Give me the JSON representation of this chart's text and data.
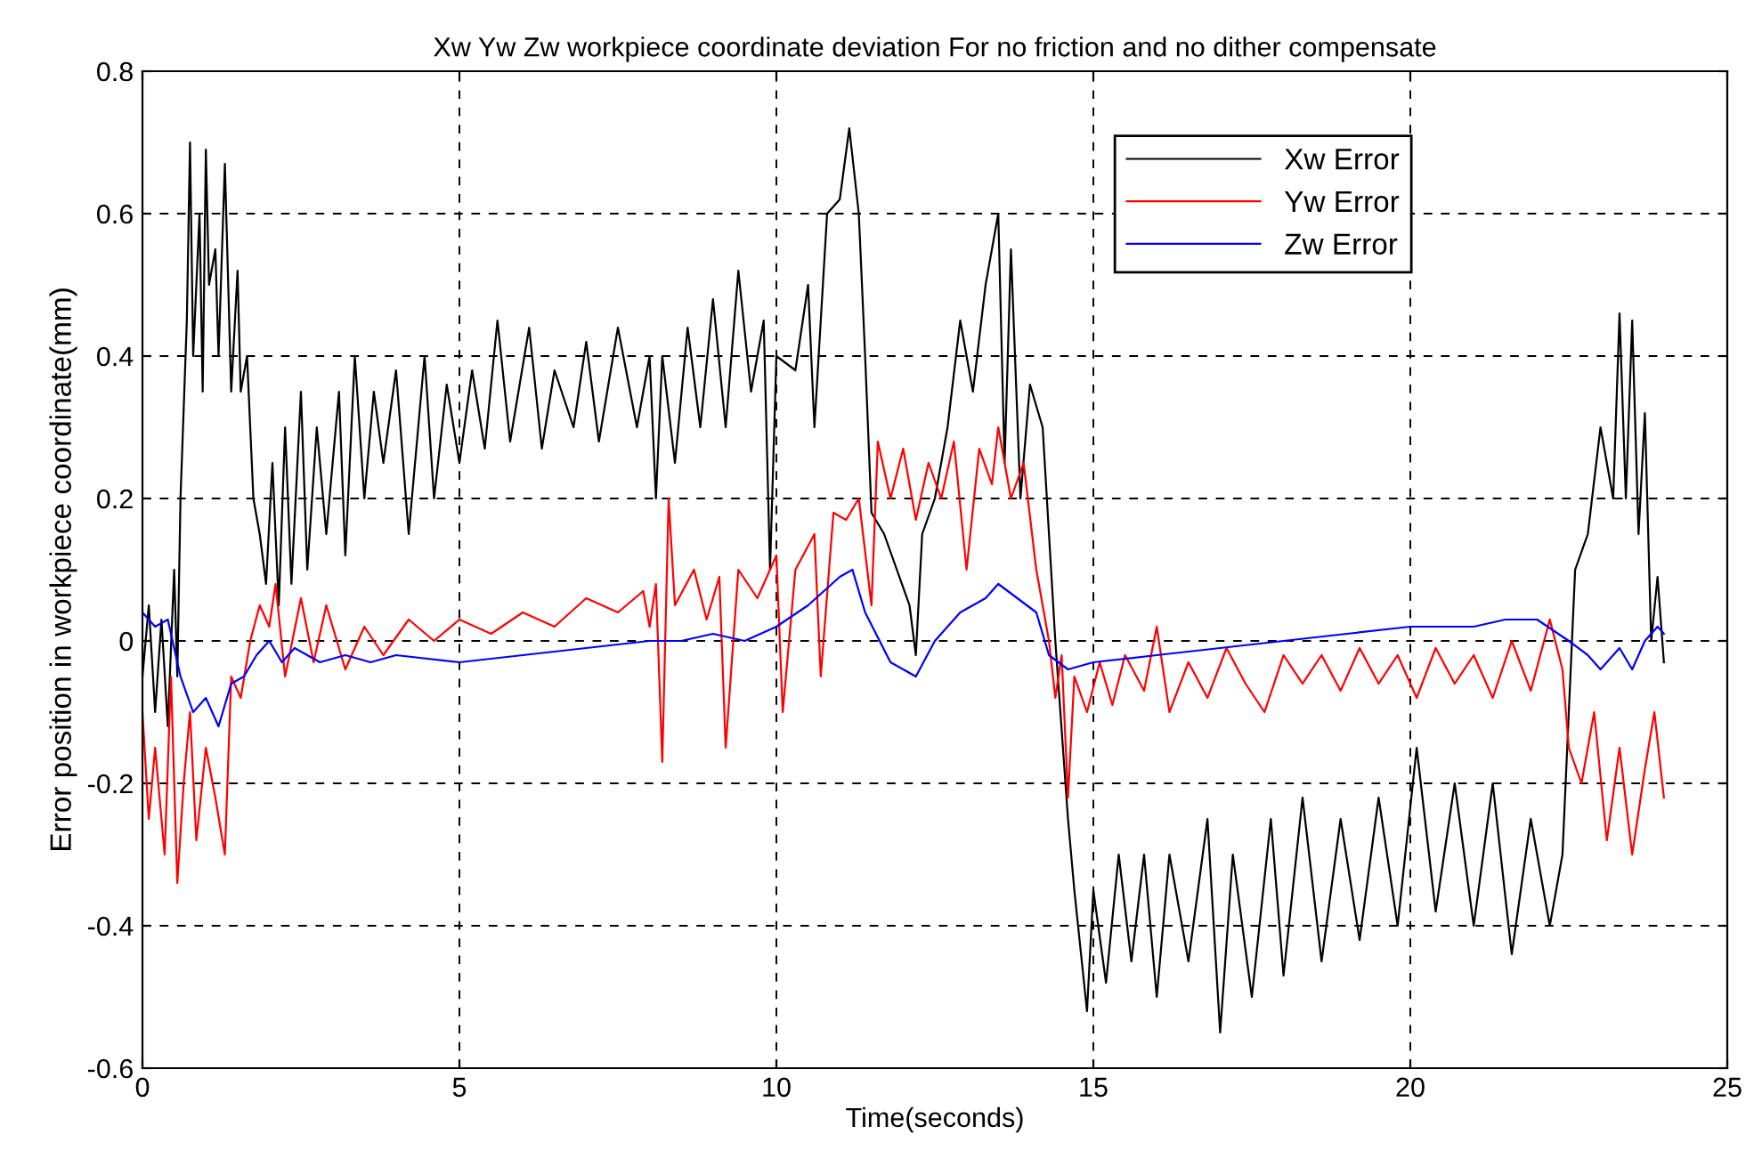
{
  "chart_data": {
    "type": "line",
    "title": "Xw Yw Zw workpiece coordinate deviation For no friction and no dither compensate",
    "xlabel": "Time(seconds)",
    "ylabel": "Error position in workpiece coordinate(mm)",
    "xlim": [
      0,
      25
    ],
    "xticks": [
      0,
      5,
      10,
      15,
      20,
      25
    ],
    "ylim": [
      -0.6,
      0.8
    ],
    "yticks": [
      -0.6,
      -0.4,
      -0.2,
      0,
      0.2,
      0.4,
      0.6,
      0.8
    ],
    "grid": true,
    "legend": "top right",
    "line_style": "solid",
    "marker": "none",
    "series": [
      {
        "name": "Xw Error",
        "color": "#000000",
        "x": [
          0,
          0.1,
          0.2,
          0.3,
          0.4,
          0.5,
          0.55,
          0.6,
          0.7,
          0.75,
          0.8,
          0.9,
          0.95,
          1.0,
          1.05,
          1.15,
          1.2,
          1.3,
          1.4,
          1.5,
          1.55,
          1.65,
          1.75,
          1.85,
          1.95,
          2.05,
          2.15,
          2.25,
          2.35,
          2.5,
          2.6,
          2.75,
          2.9,
          3.1,
          3.2,
          3.35,
          3.5,
          3.65,
          3.8,
          4.0,
          4.2,
          4.45,
          4.6,
          4.8,
          5.0,
          5.2,
          5.4,
          5.6,
          5.8,
          6.1,
          6.3,
          6.5,
          6.8,
          7.0,
          7.2,
          7.5,
          7.8,
          8.0,
          8.1,
          8.2,
          8.4,
          8.6,
          8.8,
          9.0,
          9.2,
          9.4,
          9.6,
          9.8,
          9.9,
          10.0,
          10.3,
          10.5,
          10.6,
          10.8,
          11.0,
          11.15,
          11.3,
          11.4,
          11.5,
          11.7,
          11.9,
          12.1,
          12.2,
          12.3,
          12.5,
          12.7,
          12.9,
          13.1,
          13.3,
          13.5,
          13.6,
          13.7,
          13.85,
          14.0,
          14.2,
          14.4,
          14.6,
          14.7,
          14.9,
          15.0,
          15.2,
          15.4,
          15.6,
          15.8,
          16.0,
          16.2,
          16.5,
          16.8,
          17.0,
          17.2,
          17.5,
          17.8,
          18.0,
          18.3,
          18.6,
          18.9,
          19.2,
          19.5,
          19.8,
          20.1,
          20.4,
          20.7,
          21.0,
          21.3,
          21.6,
          21.9,
          22.2,
          22.4,
          22.5,
          22.6,
          22.8,
          23.0,
          23.2,
          23.3,
          23.4,
          23.5,
          23.6,
          23.7,
          23.8,
          23.9,
          24.0
        ],
        "values": [
          -0.05,
          0.05,
          -0.1,
          0.03,
          -0.12,
          0.1,
          -0.05,
          0.2,
          0.45,
          0.7,
          0.4,
          0.6,
          0.35,
          0.69,
          0.5,
          0.55,
          0.4,
          0.67,
          0.35,
          0.52,
          0.35,
          0.4,
          0.2,
          0.15,
          0.08,
          0.25,
          0.05,
          0.3,
          0.08,
          0.35,
          0.1,
          0.3,
          0.15,
          0.35,
          0.12,
          0.4,
          0.2,
          0.35,
          0.25,
          0.38,
          0.15,
          0.4,
          0.2,
          0.36,
          0.25,
          0.38,
          0.27,
          0.45,
          0.28,
          0.44,
          0.27,
          0.38,
          0.3,
          0.42,
          0.28,
          0.44,
          0.3,
          0.4,
          0.2,
          0.4,
          0.25,
          0.44,
          0.3,
          0.48,
          0.3,
          0.52,
          0.35,
          0.45,
          0.1,
          0.4,
          0.38,
          0.5,
          0.3,
          0.6,
          0.62,
          0.72,
          0.6,
          0.4,
          0.18,
          0.15,
          0.1,
          0.05,
          -0.02,
          0.15,
          0.2,
          0.3,
          0.45,
          0.35,
          0.5,
          0.6,
          0.25,
          0.55,
          0.2,
          0.36,
          0.3,
          0.0,
          -0.25,
          -0.35,
          -0.52,
          -0.35,
          -0.48,
          -0.3,
          -0.45,
          -0.3,
          -0.5,
          -0.3,
          -0.45,
          -0.25,
          -0.55,
          -0.3,
          -0.5,
          -0.25,
          -0.47,
          -0.22,
          -0.45,
          -0.25,
          -0.42,
          -0.22,
          -0.4,
          -0.15,
          -0.38,
          -0.2,
          -0.4,
          -0.2,
          -0.44,
          -0.25,
          -0.4,
          -0.3,
          -0.1,
          0.1,
          0.15,
          0.3,
          0.2,
          0.46,
          0.2,
          0.45,
          0.15,
          0.32,
          0.0,
          0.09,
          -0.03
        ]
      },
      {
        "name": "Yw Error",
        "color": "#ff0000",
        "x": [
          0,
          0.1,
          0.2,
          0.35,
          0.45,
          0.55,
          0.65,
          0.75,
          0.85,
          1.0,
          1.15,
          1.3,
          1.4,
          1.55,
          1.7,
          1.85,
          2.0,
          2.1,
          2.25,
          2.5,
          2.7,
          2.9,
          3.0,
          3.2,
          3.5,
          3.8,
          4.2,
          4.6,
          5.0,
          5.5,
          6.0,
          6.5,
          7.0,
          7.5,
          7.9,
          8.0,
          8.1,
          8.2,
          8.3,
          8.4,
          8.7,
          8.9,
          9.1,
          9.2,
          9.4,
          9.7,
          10.0,
          10.1,
          10.3,
          10.6,
          10.7,
          10.9,
          11.1,
          11.3,
          11.5,
          11.6,
          11.8,
          12.0,
          12.2,
          12.4,
          12.6,
          12.8,
          13.0,
          13.2,
          13.4,
          13.5,
          13.7,
          13.9,
          14.1,
          14.3,
          14.4,
          14.5,
          14.6,
          14.7,
          14.9,
          15.1,
          15.3,
          15.5,
          15.8,
          16.0,
          16.2,
          16.5,
          16.8,
          17.1,
          17.4,
          17.7,
          18.0,
          18.3,
          18.6,
          18.9,
          19.2,
          19.5,
          19.8,
          20.1,
          20.4,
          20.7,
          21.0,
          21.3,
          21.6,
          21.9,
          22.2,
          22.4,
          22.5,
          22.7,
          22.9,
          23.1,
          23.3,
          23.5,
          23.7,
          23.85,
          24.0
        ],
        "values": [
          -0.1,
          -0.25,
          -0.15,
          -0.3,
          -0.05,
          -0.34,
          -0.2,
          -0.1,
          -0.28,
          -0.15,
          -0.22,
          -0.3,
          -0.05,
          -0.08,
          0.0,
          0.05,
          0.02,
          0.08,
          -0.05,
          0.06,
          -0.03,
          0.05,
          0.02,
          -0.04,
          0.02,
          -0.02,
          0.03,
          0.0,
          0.03,
          0.01,
          0.04,
          0.02,
          0.06,
          0.04,
          0.07,
          0.02,
          0.08,
          -0.17,
          0.2,
          0.05,
          0.1,
          0.03,
          0.09,
          -0.15,
          0.1,
          0.06,
          0.12,
          -0.1,
          0.1,
          0.15,
          -0.05,
          0.18,
          0.17,
          0.2,
          0.05,
          0.28,
          0.2,
          0.27,
          0.17,
          0.25,
          0.2,
          0.28,
          0.1,
          0.27,
          0.22,
          0.3,
          0.2,
          0.25,
          0.1,
          0.0,
          -0.08,
          -0.02,
          -0.22,
          -0.05,
          -0.1,
          -0.03,
          -0.09,
          -0.02,
          -0.07,
          0.02,
          -0.1,
          -0.03,
          -0.08,
          -0.01,
          -0.06,
          -0.1,
          -0.02,
          -0.06,
          -0.02,
          -0.07,
          -0.01,
          -0.06,
          -0.02,
          -0.08,
          -0.01,
          -0.06,
          -0.02,
          -0.08,
          0.0,
          -0.07,
          0.03,
          -0.04,
          -0.15,
          -0.2,
          -0.1,
          -0.28,
          -0.15,
          -0.3,
          -0.18,
          -0.1,
          -0.22
        ]
      },
      {
        "name": "Zw Error",
        "color": "#0000ff",
        "x": [
          0,
          0.2,
          0.4,
          0.6,
          0.8,
          1.0,
          1.2,
          1.4,
          1.6,
          1.8,
          2.0,
          2.2,
          2.4,
          2.8,
          3.2,
          3.6,
          4.0,
          5.0,
          6.0,
          7.0,
          8.0,
          8.5,
          9.0,
          9.5,
          10.0,
          10.5,
          11.0,
          11.2,
          11.4,
          11.8,
          12.2,
          12.5,
          12.9,
          13.3,
          13.5,
          13.8,
          14.1,
          14.3,
          14.6,
          15.0,
          16.0,
          17.0,
          18.0,
          19.0,
          20.0,
          21.0,
          21.5,
          22.0,
          22.5,
          22.8,
          23.0,
          23.3,
          23.5,
          23.7,
          23.9,
          24.0
        ],
        "values": [
          0.04,
          0.02,
          0.03,
          -0.05,
          -0.1,
          -0.08,
          -0.12,
          -0.06,
          -0.05,
          -0.02,
          0.0,
          -0.03,
          -0.01,
          -0.03,
          -0.02,
          -0.03,
          -0.02,
          -0.03,
          -0.02,
          -0.01,
          0.0,
          0.0,
          0.01,
          0.0,
          0.02,
          0.05,
          0.09,
          0.1,
          0.04,
          -0.03,
          -0.05,
          0.0,
          0.04,
          0.06,
          0.08,
          0.06,
          0.04,
          -0.02,
          -0.04,
          -0.03,
          -0.02,
          -0.01,
          0.0,
          0.01,
          0.02,
          0.02,
          0.03,
          0.03,
          0.0,
          -0.02,
          -0.04,
          -0.01,
          -0.04,
          0.0,
          0.02,
          0.01
        ]
      }
    ]
  }
}
